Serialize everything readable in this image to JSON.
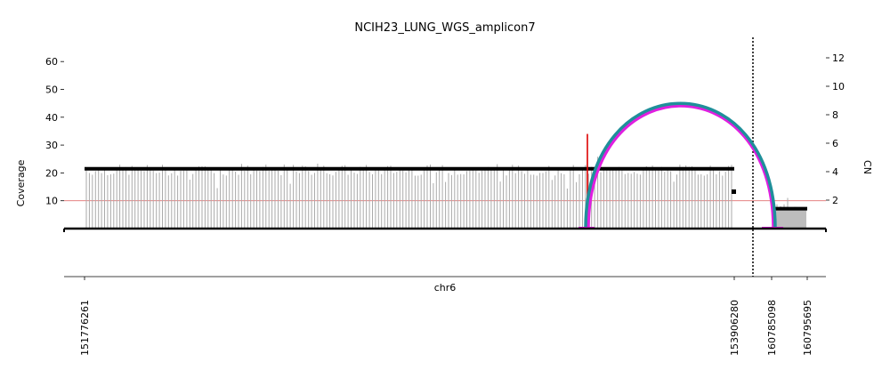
{
  "chart_data": {
    "type": "line",
    "title": "NCIH23_LUNG_WGS_amplicon7",
    "xlabel": "chr6",
    "ylabel_left": "Coverage",
    "ylabel_right": "CN",
    "left_axis": {
      "ylim": [
        0,
        65
      ],
      "ticks": [
        10,
        20,
        30,
        40,
        50,
        60
      ]
    },
    "right_axis": {
      "ylim": [
        0,
        13
      ],
      "ticks": [
        2,
        4,
        6,
        8,
        10,
        12
      ]
    },
    "x_tick_labels": [
      "151776261",
      "153906280",
      "160785098",
      "160795695"
    ],
    "segments": [
      {
        "name": "chr6:151776261-153906280",
        "coverage_mean": 21,
        "cn": 4.2
      },
      {
        "name": "chr6:160785098-160795695",
        "coverage_mean": 7,
        "cn": 1.4
      }
    ],
    "threshold_line": {
      "coverage": 10,
      "color": "#e07070"
    },
    "breakpoints": [
      {
        "type": "discordant_edge",
        "color": "#dd0000",
        "coverage": 34
      }
    ],
    "arcs": [
      {
        "name": "sv-edge-teal",
        "color": "#1f8f9a",
        "peak_cn": 8.6
      },
      {
        "name": "sv-edge-magenta",
        "color": "#e01ee0",
        "peak_cn": 8.5
      }
    ],
    "colors": {
      "coverage_bars": "#aaaaaa",
      "segment": "#000000",
      "arc_primary": "#1f8f9a",
      "arc_secondary": "#e01ee0"
    }
  }
}
